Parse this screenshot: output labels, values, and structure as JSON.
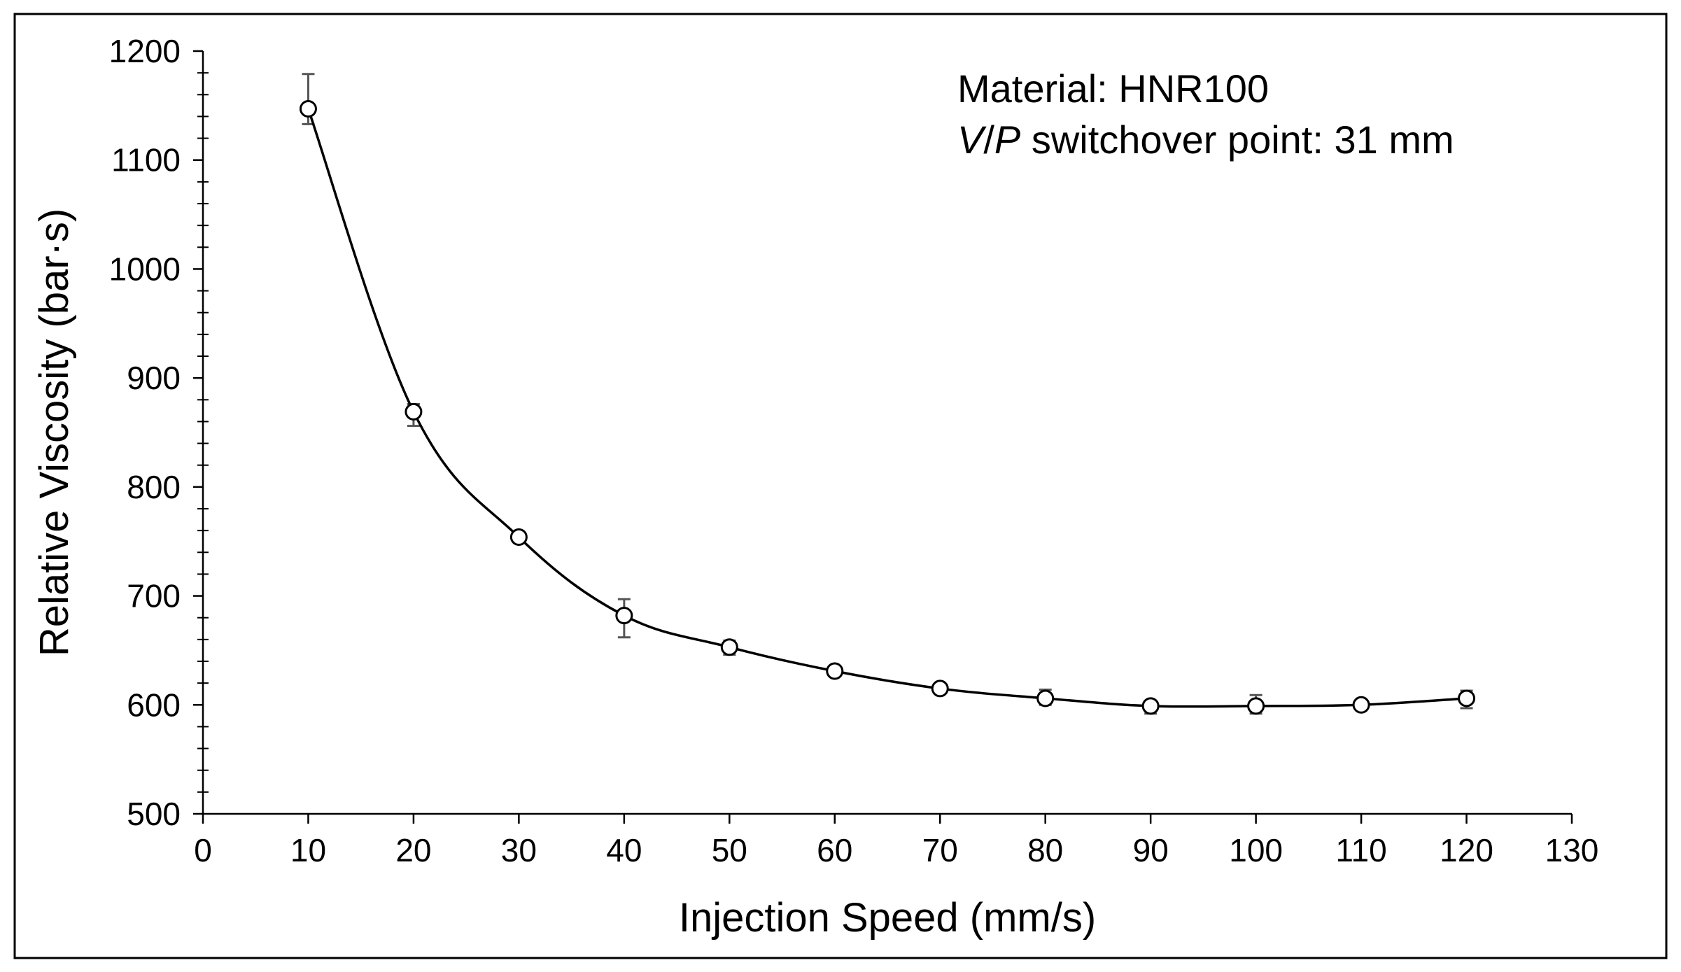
{
  "chart_data": {
    "type": "line",
    "title": "",
    "xlabel": "Injection Speed (mm/s)",
    "ylabel": "Relative Viscosity (bar·s)",
    "xlim": [
      0,
      130
    ],
    "ylim": [
      500,
      1200
    ],
    "x_ticks": [
      0,
      10,
      20,
      30,
      40,
      50,
      60,
      70,
      80,
      90,
      100,
      110,
      120,
      130
    ],
    "y_ticks": [
      500,
      600,
      700,
      800,
      900,
      1000,
      1100,
      1200
    ],
    "grid": false,
    "legend": "none",
    "marker": "open-circle",
    "error_bars": true,
    "x": [
      10,
      20,
      30,
      40,
      50,
      60,
      70,
      80,
      90,
      100,
      110,
      120
    ],
    "series": [
      {
        "values": [
          1147,
          869,
          754,
          682,
          653,
          631,
          615,
          606,
          599,
          599,
          600,
          606
        ],
        "error_low": [
          1133,
          856,
          751,
          662,
          646,
          628,
          612,
          600,
          592,
          592,
          597,
          597
        ],
        "error_high": [
          1179,
          876,
          757,
          697,
          659,
          635,
          617,
          614,
          603,
          609,
          603,
          613
        ]
      }
    ],
    "annotations": {
      "material_line": "Material: HNR100",
      "vp_italic_v": "V",
      "vp_slash": "/",
      "vp_italic_p": "P",
      "vp_rest": " switchover point: 31 mm"
    },
    "colors": {
      "line": "#000000",
      "marker_fill": "#ffffff",
      "error_bar": "#555555",
      "frame": "#000000"
    }
  }
}
